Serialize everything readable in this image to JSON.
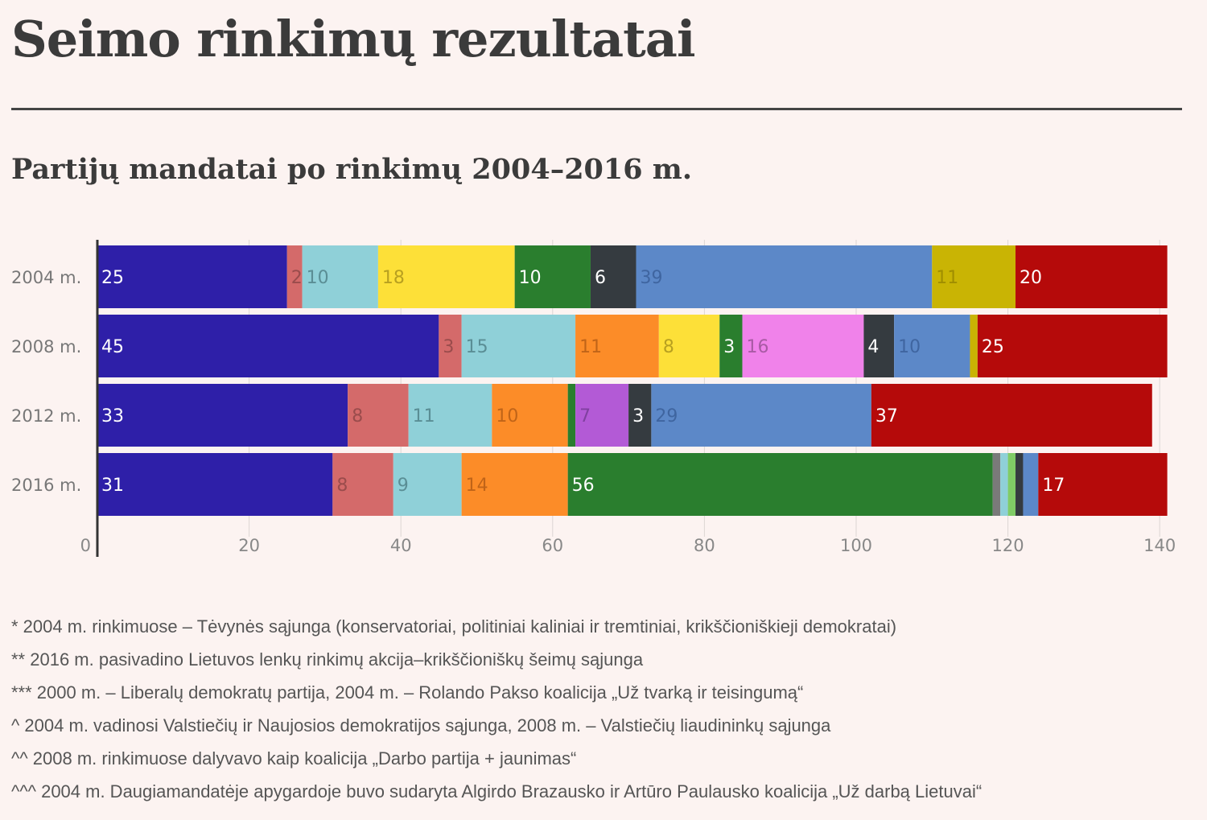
{
  "page": {
    "title": "Seimo rinkimų rezultatai",
    "subtitle": "Partijų mandatai po rinkimų 2004–2016 m."
  },
  "footnotes": [
    "* 2004 m. rinkimuose – Tėvynės sąjunga (konservatoriai, politiniai kaliniai ir tremtiniai, krikščioniškieji demokratai)",
    "** 2016 m. pasivadino Lietuvos lenkų rinkimų akcija–krikščioniškų šeimų sąjunga",
    "*** 2000 m. – Liberalų demokratų partija, 2004 m. – Rolando Pakso koalicija „Už tvarką ir teisingumą“",
    "^ 2004 m. vadinosi Valstiečių ir Naujosios demokratijos sąjunga, 2008 m. – Valstiečių liaudininkų sąjunga",
    "^^ 2008 m. rinkimuose dalyvavo kaip koalicija „Darbo partija + jaunimas“",
    "^^^ 2004 m. Daugiamandatėje apygardoje buvo sudaryta Algirdo Brazausko ir Artūro Paulausko koalicija „Už darbą Lietuvai“"
  ],
  "chart_data": {
    "type": "bar",
    "orientation": "horizontal",
    "stacked": true,
    "title": "",
    "xlabel": "",
    "ylabel": "",
    "xlim": [
      0,
      141
    ],
    "xticks": [
      0,
      20,
      40,
      60,
      80,
      100,
      120,
      140
    ],
    "grid": true,
    "legend": "none",
    "categories": [
      "2004 m.",
      "2008 m.",
      "2012 m.",
      "2016 m."
    ],
    "rows": [
      {
        "category": "2004 m.",
        "segments": [
          {
            "value": 25,
            "color": "#2e1fa8",
            "label": "25",
            "label_color": "#ffffff"
          },
          {
            "value": 2,
            "color": "#d46a6a",
            "label": "2",
            "label_color": "#9a4c4c"
          },
          {
            "value": 10,
            "color": "#8fd0d8",
            "label": "10",
            "label_color": "#5a8e95"
          },
          {
            "value": 18,
            "color": "#fde038",
            "label": "18",
            "label_color": "#b8a020"
          },
          {
            "value": 10,
            "color": "#2a7e2e",
            "label": "10",
            "label_color": "#ffffff"
          },
          {
            "value": 6,
            "color": "#353b40",
            "label": "6",
            "label_color": "#ffffff"
          },
          {
            "value": 39,
            "color": "#5c88c8",
            "label": "39",
            "label_color": "#3f65a0"
          },
          {
            "value": 11,
            "color": "#c9b404",
            "label": "11",
            "label_color": "#a08e00"
          },
          {
            "value": 20,
            "color": "#b50a0a",
            "label": "20",
            "label_color": "#ffffff"
          }
        ]
      },
      {
        "category": "2008 m.",
        "segments": [
          {
            "value": 45,
            "color": "#2e1fa8",
            "label": "45",
            "label_color": "#ffffff"
          },
          {
            "value": 3,
            "color": "#d46a6a",
            "label": "3",
            "label_color": "#9a4c4c"
          },
          {
            "value": 15,
            "color": "#8fd0d8",
            "label": "15",
            "label_color": "#5a8e95"
          },
          {
            "value": 11,
            "color": "#fc8c28",
            "label": "11",
            "label_color": "#c06418"
          },
          {
            "value": 8,
            "color": "#fde038",
            "label": "8",
            "label_color": "#b8a020"
          },
          {
            "value": 3,
            "color": "#2a7e2e",
            "label": "3",
            "label_color": "#ffffff"
          },
          {
            "value": 16,
            "color": "#f082ea",
            "label": "16",
            "label_color": "#a85aa4"
          },
          {
            "value": 4,
            "color": "#353b40",
            "label": "4",
            "label_color": "#ffffff"
          },
          {
            "value": 10,
            "color": "#5c88c8",
            "label": "10",
            "label_color": "#3f65a0"
          },
          {
            "value": 1,
            "color": "#c9b404",
            "label": "",
            "label_color": "#a08e00"
          },
          {
            "value": 25,
            "color": "#b50a0a",
            "label": "25",
            "label_color": "#ffffff"
          }
        ]
      },
      {
        "category": "2012 m.",
        "segments": [
          {
            "value": 33,
            "color": "#2e1fa8",
            "label": "33",
            "label_color": "#ffffff"
          },
          {
            "value": 8,
            "color": "#d46a6a",
            "label": "8",
            "label_color": "#9a4c4c"
          },
          {
            "value": 11,
            "color": "#8fd0d8",
            "label": "11",
            "label_color": "#5a8e95"
          },
          {
            "value": 10,
            "color": "#fc8c28",
            "label": "10",
            "label_color": "#c06418"
          },
          {
            "value": 1,
            "color": "#2a7e2e",
            "label": "",
            "label_color": "#ffffff"
          },
          {
            "value": 7,
            "color": "#b35ad6",
            "label": "7",
            "label_color": "#8040a0"
          },
          {
            "value": 3,
            "color": "#353b40",
            "label": "3",
            "label_color": "#ffffff"
          },
          {
            "value": 29,
            "color": "#5c88c8",
            "label": "29",
            "label_color": "#3f65a0"
          },
          {
            "value": 37,
            "color": "#b50a0a",
            "label": "37",
            "label_color": "#ffffff"
          }
        ]
      },
      {
        "category": "2016 m.",
        "segments": [
          {
            "value": 31,
            "color": "#2e1fa8",
            "label": "31",
            "label_color": "#ffffff"
          },
          {
            "value": 8,
            "color": "#d46a6a",
            "label": "8",
            "label_color": "#9a4c4c"
          },
          {
            "value": 9,
            "color": "#8fd0d8",
            "label": "9",
            "label_color": "#5a8e95"
          },
          {
            "value": 14,
            "color": "#fc8c28",
            "label": "14",
            "label_color": "#c06418"
          },
          {
            "value": 56,
            "color": "#2a7e2e",
            "label": "56",
            "label_color": "#ffffff"
          },
          {
            "value": 1,
            "color": "#7a7a7a",
            "label": "",
            "label_color": "#ffffff"
          },
          {
            "value": 1,
            "color": "#8fd0d8",
            "label": "",
            "label_color": "#ffffff"
          },
          {
            "value": 1,
            "color": "#80cc66",
            "label": "",
            "label_color": "#ffffff"
          },
          {
            "value": 1,
            "color": "#353b40",
            "label": "",
            "label_color": "#ffffff"
          },
          {
            "value": 2,
            "color": "#5c88c8",
            "label": "",
            "label_color": "#ffffff"
          },
          {
            "value": 17,
            "color": "#b50a0a",
            "label": "17",
            "label_color": "#ffffff"
          }
        ]
      }
    ]
  }
}
